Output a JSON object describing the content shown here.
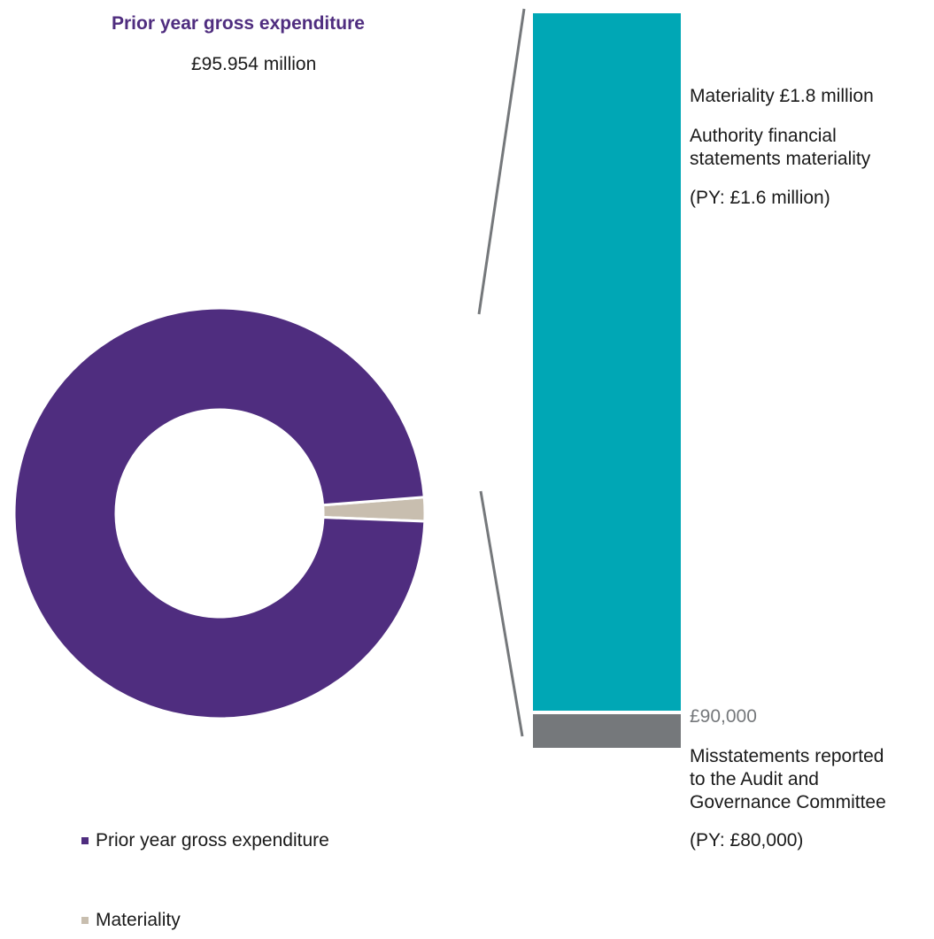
{
  "chart_data": {
    "type": "pie",
    "variant": "donut-with-breakout-bar",
    "title": "Prior year gross expenditure",
    "subtitle": "£95.954 million",
    "slices": [
      {
        "name": "Prior year gross expenditure",
        "value": 94.154,
        "color": "#4f2d7f"
      },
      {
        "name": "Materiality",
        "value": 1.8,
        "color": "#c8beaf"
      }
    ],
    "legend": {
      "placement": "bottom-left",
      "entries": [
        "Prior year gross expenditure",
        "Materiality"
      ]
    },
    "breakout_bar": {
      "segments": [
        {
          "name": "Materiality",
          "value": 1800000,
          "color": "#00a7b5"
        },
        {
          "name": "Misstatements reported",
          "value": 90000,
          "color": "#75787b"
        }
      ]
    },
    "annotations": {
      "materiality_line1": "Materiality £1.8 million",
      "materiality_line2a": "Authority financial",
      "materiality_line2b": "statements materiality",
      "materiality_py": "(PY: £1.6 million)",
      "threshold_value": "£90,000",
      "threshold_line1": "Misstatements reported",
      "threshold_line2": "to the Audit and",
      "threshold_line3": "Governance Committee",
      "threshold_py": "(PY: £80,000)"
    },
    "colors": {
      "title": "#4f2d7f",
      "connector": "#75787b",
      "threshold_text": "#75787b"
    }
  }
}
